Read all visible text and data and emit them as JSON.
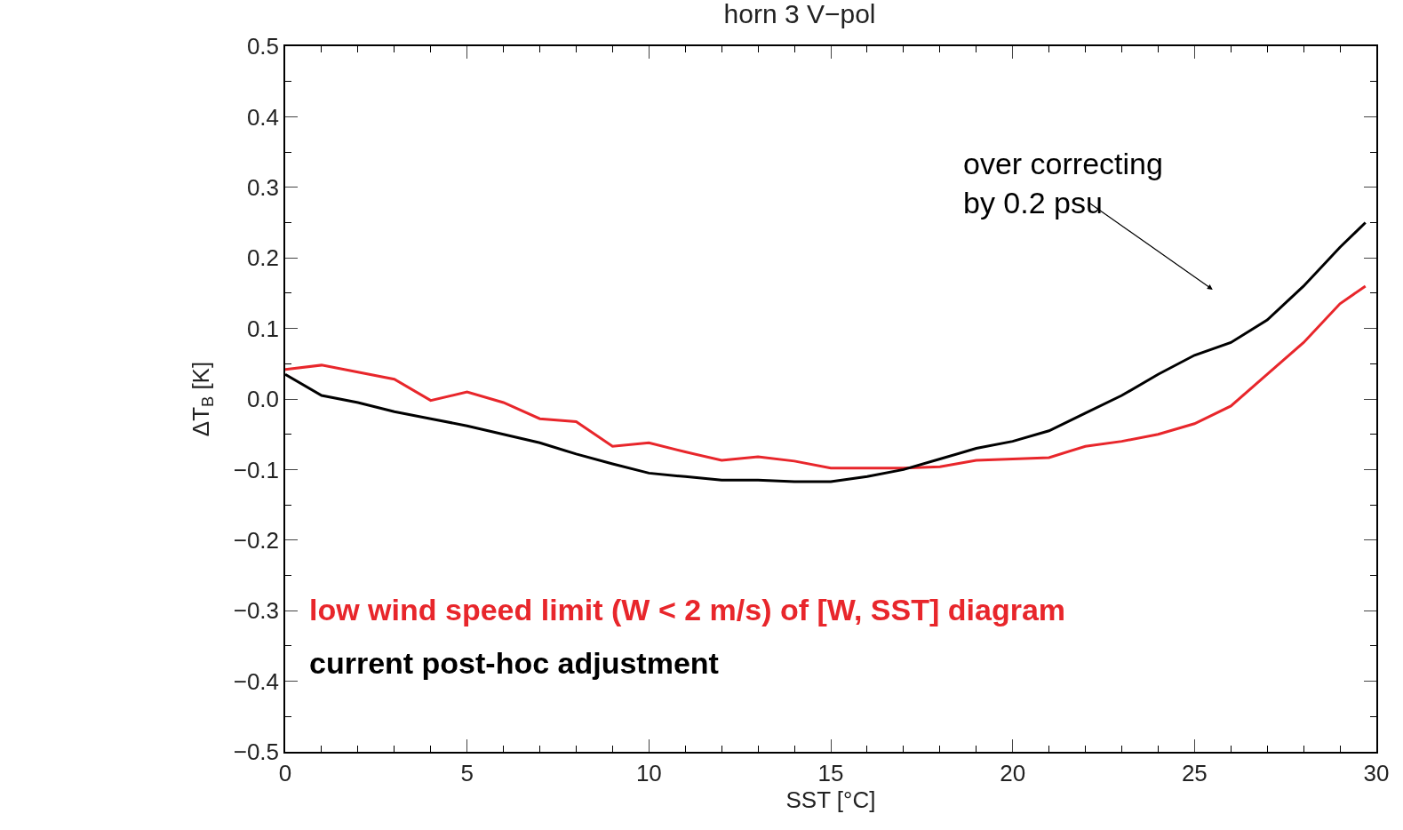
{
  "chart_data": {
    "type": "line",
    "title": "horn 3 V−pol",
    "xlabel": "SST [°C]",
    "ylabel": "ΔT$_{B}$ [K]",
    "xlim": [
      0,
      30
    ],
    "xticks": [
      0,
      5,
      10,
      15,
      20,
      25,
      30
    ],
    "ylim": [
      -0.5,
      0.5
    ],
    "yticks": [
      {
        "value": -0.5,
        "label": "−0.5"
      },
      {
        "value": -0.4,
        "label": "−0.4"
      },
      {
        "value": -0.3,
        "label": "−0.3"
      },
      {
        "value": -0.2,
        "label": "−0.2"
      },
      {
        "value": -0.1,
        "label": "−0.1"
      },
      {
        "value": 0,
        "label": "0.0"
      },
      0.1,
      0.2,
      0.3,
      0.4,
      0.5
    ],
    "marker": "none",
    "line_style": "solid",
    "x": [
      0,
      1,
      2,
      3,
      4,
      5,
      6,
      7,
      8,
      9,
      10,
      11,
      12,
      13,
      14,
      15,
      16,
      17,
      18,
      19,
      20,
      21,
      22,
      23,
      24,
      25,
      26,
      27,
      28,
      29,
      29.7
    ],
    "series": [
      {
        "name": "low wind speed limit (W < 2 m/s) of [W, SST] diagram",
        "color": "#e8262b",
        "values": [
          0.042,
          0.048,
          0.038,
          0.028,
          -0.002,
          0.01,
          -0.005,
          -0.028,
          -0.032,
          -0.067,
          -0.062,
          -0.075,
          -0.087,
          -0.082,
          -0.088,
          -0.098,
          -0.098,
          -0.098,
          -0.096,
          -0.087,
          -0.085,
          -0.083,
          -0.067,
          -0.06,
          -0.05,
          -0.035,
          -0.01,
          0.035,
          0.08,
          0.135,
          0.16
        ]
      },
      {
        "name": "current post-hoc adjustment",
        "color": "#000000",
        "values": [
          0.035,
          0.005,
          -0.005,
          -0.018,
          -0.028,
          -0.038,
          -0.05,
          -0.062,
          -0.078,
          -0.092,
          -0.105,
          -0.11,
          -0.115,
          -0.115,
          -0.117,
          -0.117,
          -0.11,
          -0.1,
          -0.085,
          -0.07,
          -0.06,
          -0.045,
          -0.02,
          0.005,
          0.035,
          0.062,
          0.08,
          0.112,
          0.16,
          0.215,
          0.25
        ]
      }
    ],
    "annotations": [
      "over correcting\nby 0.2 psu"
    ]
  }
}
